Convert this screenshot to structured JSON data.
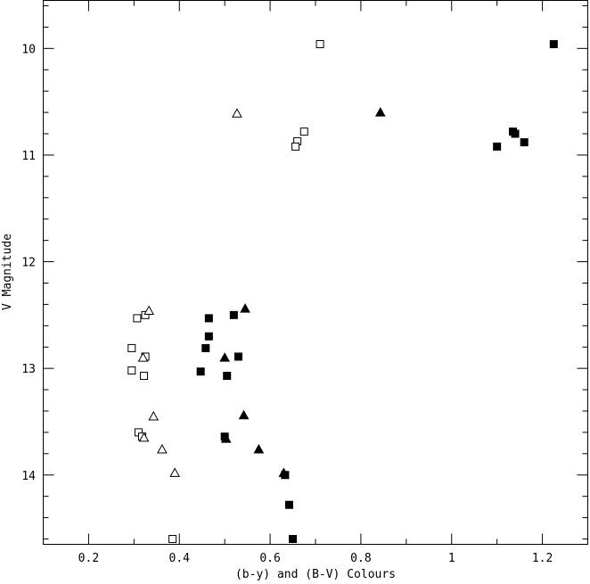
{
  "chart_data": {
    "type": "scatter",
    "title": "",
    "xlabel": "(b-y) and (B-V) Colours",
    "ylabel": "V Magnitude",
    "xlim": [
      0.1,
      1.3
    ],
    "ylim": [
      14.65,
      9.55
    ],
    "y_inverted": true,
    "grid": false,
    "legend": "none",
    "xticks": [
      0.2,
      0.4,
      0.6,
      0.8,
      1,
      1.2
    ],
    "xtick_labels": [
      "0.2",
      "0.4",
      "0.6",
      "0.8",
      "1",
      "1.2"
    ],
    "yticks": [
      10,
      11,
      12,
      13,
      14
    ],
    "ytick_labels": [
      "10",
      "11",
      "12",
      "13",
      "14"
    ],
    "series": [
      {
        "marker": "open-square",
        "points": [
          [
            0.71,
            9.96
          ],
          [
            0.675,
            10.78
          ],
          [
            0.66,
            10.87
          ],
          [
            0.656,
            10.92
          ],
          [
            0.307,
            12.53
          ],
          [
            0.325,
            12.5
          ],
          [
            0.295,
            12.81
          ],
          [
            0.325,
            12.89
          ],
          [
            0.295,
            13.02
          ],
          [
            0.322,
            13.07
          ],
          [
            0.31,
            13.6
          ],
          [
            0.318,
            13.64
          ],
          [
            0.385,
            14.6
          ]
        ]
      },
      {
        "marker": "open-triangle",
        "points": [
          [
            0.527,
            10.61
          ],
          [
            0.333,
            12.46
          ],
          [
            0.32,
            12.9
          ],
          [
            0.343,
            13.45
          ],
          [
            0.322,
            13.65
          ],
          [
            0.362,
            13.76
          ],
          [
            0.39,
            13.98
          ]
        ]
      },
      {
        "marker": "filled-square",
        "points": [
          [
            1.225,
            9.96
          ],
          [
            1.135,
            10.78
          ],
          [
            1.14,
            10.8
          ],
          [
            1.16,
            10.88
          ],
          [
            1.1,
            10.92
          ],
          [
            0.465,
            12.53
          ],
          [
            0.52,
            12.5
          ],
          [
            0.465,
            12.7
          ],
          [
            0.458,
            12.81
          ],
          [
            0.53,
            12.89
          ],
          [
            0.447,
            13.03
          ],
          [
            0.505,
            13.07
          ],
          [
            0.5,
            13.64
          ],
          [
            0.633,
            14.0
          ],
          [
            0.642,
            14.28
          ],
          [
            0.65,
            14.6
          ]
        ]
      },
      {
        "marker": "filled-triangle",
        "points": [
          [
            0.843,
            10.6
          ],
          [
            0.545,
            12.44
          ],
          [
            0.5,
            12.9
          ],
          [
            0.542,
            13.44
          ],
          [
            0.503,
            13.66
          ],
          [
            0.575,
            13.76
          ],
          [
            0.63,
            13.98
          ]
        ]
      }
    ]
  }
}
